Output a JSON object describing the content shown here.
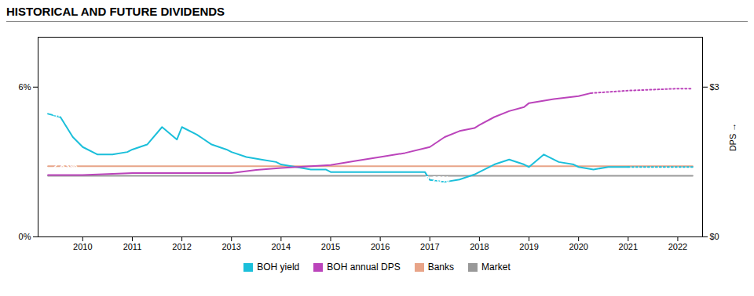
{
  "chart_data": {
    "type": "line",
    "title": "HISTORICAL AND FUTURE DIVIDENDS",
    "xlim": [
      2009.1,
      2022.5
    ],
    "xticks": [
      2010,
      2011,
      2012,
      2013,
      2014,
      2015,
      2016,
      2017,
      2018,
      2019,
      2020,
      2021,
      2022
    ],
    "ylim": [
      0.0,
      0.08
    ],
    "yticks": [
      {
        "value": 0.0,
        "label": "0%"
      },
      {
        "value": 0.06,
        "label": "6%"
      }
    ],
    "y2lim": [
      0.0,
      4.0
    ],
    "y2ticks": [
      {
        "value": 0.0,
        "label": "$0"
      },
      {
        "value": 3.0,
        "label": "$3"
      }
    ],
    "y2label": "DPS",
    "grid": false,
    "legend": "bottom",
    "series": [
      {
        "name": "BOH yield",
        "color": "#1bbfda",
        "line_style": "solid",
        "x": [
          2009.3,
          2009.55,
          2009.8,
          2010.0,
          2010.3,
          2010.6,
          2010.9,
          2011.0,
          2011.3,
          2011.6,
          2011.9,
          2012.0,
          2012.3,
          2012.6,
          2012.9,
          2013.0,
          2013.3,
          2013.6,
          2013.9,
          2014.0,
          2014.3,
          2014.6,
          2014.9,
          2015.0,
          2015.3,
          2015.6,
          2015.9,
          2016.0,
          2016.3,
          2016.6,
          2016.9,
          2017.0,
          2017.3,
          2017.6,
          2017.9,
          2018.0,
          2018.3,
          2018.6,
          2018.9,
          2019.0,
          2019.3,
          2019.6,
          2019.9,
          2020.0,
          2020.3,
          2020.6,
          2020.9,
          2021.0
        ],
        "values": [
          0.0493,
          0.048,
          0.04,
          0.036,
          0.033,
          0.033,
          0.034,
          0.035,
          0.037,
          0.044,
          0.039,
          0.044,
          0.041,
          0.037,
          0.035,
          0.034,
          0.032,
          0.031,
          0.03,
          0.029,
          0.028,
          0.027,
          0.027,
          0.026,
          0.026,
          0.026,
          0.026,
          0.026,
          0.026,
          0.026,
          0.026,
          0.0228,
          0.022,
          0.023,
          0.025,
          0.026,
          0.029,
          0.031,
          0.029,
          0.028,
          0.033,
          0.03,
          0.029,
          0.028,
          0.027,
          0.028,
          0.028,
          0.028
        ]
      },
      {
        "name": "BOH yield",
        "color": "#1bbfda",
        "line_style": "dotted",
        "x": [
          2021.0,
          2021.5,
          2022.0,
          2022.3
        ],
        "values": [
          0.028,
          0.028,
          0.028,
          0.028
        ]
      },
      {
        "name": "BOH annual DPS",
        "color": "#bb44bb",
        "line_style": "solid",
        "axis": "y2",
        "x": [
          2009.3,
          2010.0,
          2011.0,
          2012.0,
          2013.0,
          2013.5,
          2014.0,
          2015.0,
          2015.5,
          2016.0,
          2016.5,
          2017.0,
          2017.3,
          2017.6,
          2017.9,
          2018.0,
          2018.3,
          2018.6,
          2018.9,
          2019.0,
          2019.5,
          2020.0,
          2020.25
        ],
        "values": [
          1.24,
          1.24,
          1.28,
          1.28,
          1.28,
          1.34,
          1.38,
          1.44,
          1.52,
          1.6,
          1.68,
          1.8,
          2.0,
          2.12,
          2.18,
          2.24,
          2.4,
          2.52,
          2.6,
          2.68,
          2.76,
          2.82,
          2.88
        ]
      },
      {
        "name": "BOH annual DPS",
        "color": "#bb44bb",
        "line_style": "dotted",
        "axis": "y2",
        "x": [
          2020.25,
          2021.0,
          2022.0,
          2022.3
        ],
        "values": [
          2.88,
          2.93,
          2.97,
          2.97
        ]
      },
      {
        "name": "Banks",
        "color": "#e8a488",
        "line_style": "solid",
        "x": [
          2009.3,
          2022.3
        ],
        "values": [
          0.0283,
          0.0283
        ]
      },
      {
        "name": "Market",
        "color": "#999999",
        "line_style": "solid",
        "x": [
          2009.3,
          2022.3
        ],
        "values": [
          0.0245,
          0.0245
        ]
      }
    ],
    "annotations": [
      {
        "text": "4.93%",
        "x": 2009.35,
        "y": 0.0493,
        "color": "#1bbfda"
      },
      {
        "text": "2.83%",
        "x": 2009.35,
        "y": 0.0283,
        "color": "#e8a488"
      },
      {
        "text": "2.28%",
        "x": 2016.85,
        "y": 0.0228,
        "color": "#1bbfda"
      }
    ]
  }
}
